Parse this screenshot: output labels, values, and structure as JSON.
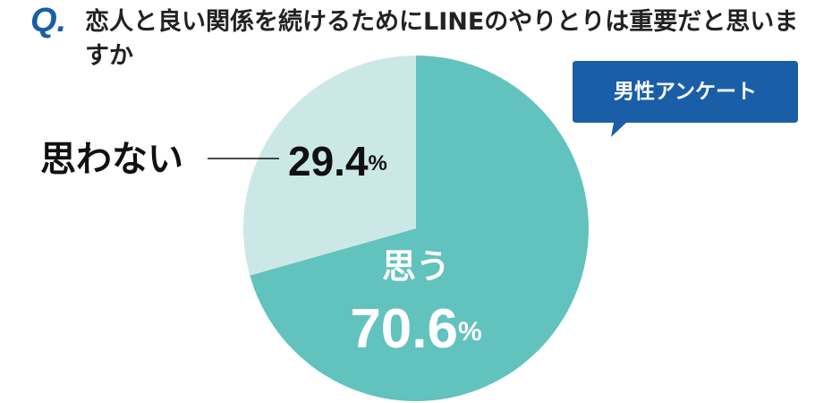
{
  "chart_data": {
    "type": "pie",
    "question_marker": "Q.",
    "title": "恋人と良い関係を続けるためにLINEのやりとりは重要だと思いますか",
    "badge": "男性アンケート",
    "categories": [
      "思う",
      "思わない"
    ],
    "values": [
      70.6,
      29.4
    ],
    "value_labels": [
      "70.6%",
      "29.4%"
    ],
    "colors": [
      "#62c2be",
      "#cce8e6"
    ],
    "badge_color": "#1a5ea8"
  }
}
